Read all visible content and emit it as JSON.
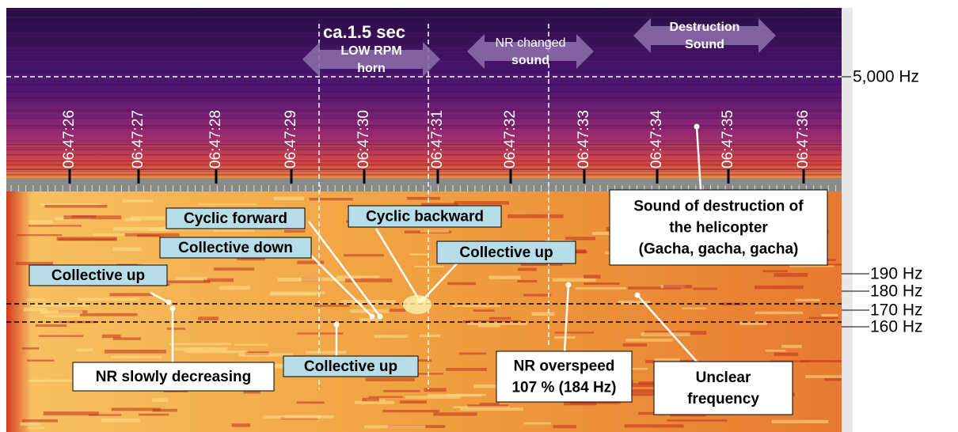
{
  "upper_panel": {
    "time_labels": [
      "06:47:26",
      "06:47:27",
      "06:47:28",
      "06:47:29",
      "06:47:30",
      "06:47:31",
      "06:47:32",
      "06:47:33",
      "06:47:34",
      "06:47:35",
      "06:47:36"
    ],
    "duration_label": "ca.1.5 sec",
    "arrow_labels": [
      {
        "lines": [
          "LOW RPM",
          "horn"
        ]
      },
      {
        "lines": [
          "NR changed",
          "sound"
        ]
      },
      {
        "lines": [
          "Destruction",
          "Sound"
        ]
      }
    ],
    "frequency_label": "5,000 Hz"
  },
  "lower_panel": {
    "frequency_labels": [
      "190 Hz",
      "180 Hz",
      "170 Hz",
      "160 Hz"
    ],
    "callouts": [
      {
        "lines": [
          "Cyclic forward"
        ]
      },
      {
        "lines": [
          "Cyclic backward"
        ]
      },
      {
        "lines": [
          "Collective down"
        ]
      },
      {
        "lines": [
          "Collective up"
        ]
      },
      {
        "lines": [
          "Collective up"
        ]
      },
      {
        "lines": [
          "Collective up"
        ]
      },
      {
        "lines": [
          "NR slowly decreasing"
        ]
      },
      {
        "lines": [
          "Sound of destruction of",
          "the helicopter",
          "(Gacha, gacha, gacha)"
        ]
      },
      {
        "lines": [
          "NR overspeed",
          "107 % (184 Hz)"
        ]
      },
      {
        "lines": [
          "Unclear",
          "frequency"
        ]
      }
    ]
  }
}
